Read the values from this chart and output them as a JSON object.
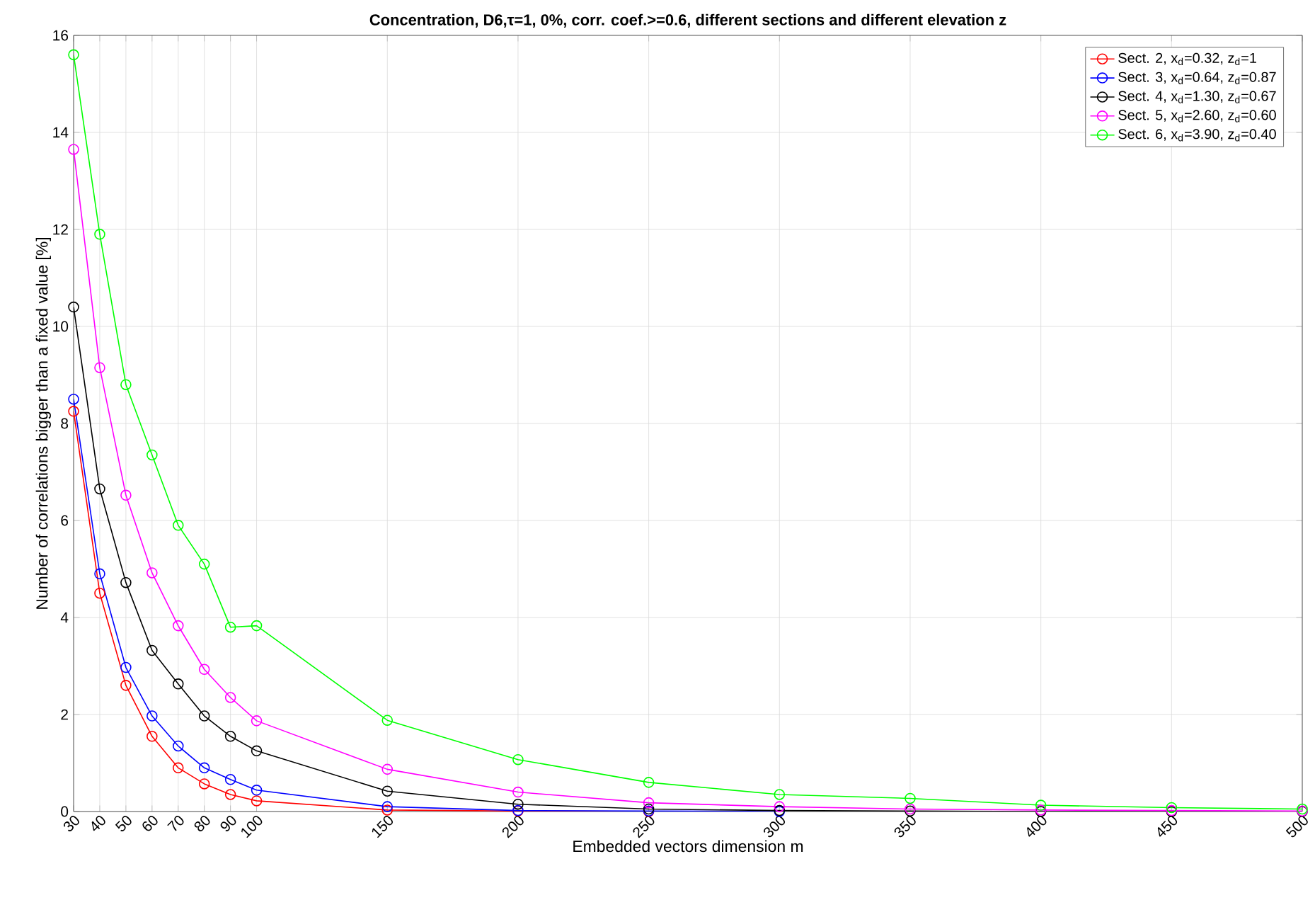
{
  "chart_data": {
    "type": "line",
    "title": "Concentration, D6,τ=1, 0%, corr. coef.>=0.6, different sections and different elevation z",
    "xlabel": "Embedded vectors dimension m",
    "ylabel": "Number of correlations bigger than a fixed value [%]",
    "x": [
      30,
      40,
      50,
      60,
      70,
      80,
      90,
      100,
      150,
      200,
      250,
      300,
      350,
      400,
      450,
      500
    ],
    "series": [
      {
        "name": "Sect. 2, x$_{d}$=0.32, z$_{d}$=1",
        "color": "#ff0000",
        "values": [
          8.25,
          4.5,
          2.6,
          1.55,
          0.9,
          0.57,
          0.35,
          0.22,
          0.03,
          0.01,
          0,
          null,
          null,
          null,
          null,
          null
        ]
      },
      {
        "name": "Sect. 3, x$_{d}$=0.64, z$_{d}$=0.87",
        "color": "#0000ff",
        "values": [
          8.5,
          4.9,
          2.97,
          1.97,
          1.35,
          0.9,
          0.66,
          0.44,
          0.1,
          0.02,
          0.01,
          0,
          null,
          null,
          null,
          null
        ]
      },
      {
        "name": "Sect. 4, x$_{d}$=1.30, z$_{d}$=0.67",
        "color": "#000000",
        "values": [
          10.4,
          6.65,
          4.72,
          3.32,
          2.63,
          1.97,
          1.55,
          1.25,
          0.42,
          0.15,
          0.05,
          0.02,
          0.01,
          0,
          0,
          0
        ]
      },
      {
        "name": "Sect. 5, x$_{d}$=2.60, z$_{d}$=0.60",
        "color": "#ff00ff",
        "values": [
          13.65,
          9.15,
          6.52,
          4.92,
          3.83,
          2.93,
          2.35,
          1.87,
          0.87,
          0.4,
          0.18,
          0.1,
          0.05,
          0.03,
          0.02,
          0.01
        ]
      },
      {
        "name": "Sect. 6, x$_{d}$=3.90, z$_{d}$=0.40",
        "color": "#00ff00",
        "values": [
          15.6,
          11.9,
          8.8,
          7.35,
          5.9,
          5.1,
          3.8,
          3.83,
          1.88,
          1.07,
          0.6,
          0.35,
          0.27,
          0.13,
          0.08,
          0.05
        ]
      }
    ],
    "xlim": [
      30,
      500
    ],
    "xticks": [
      30,
      40,
      50,
      60,
      70,
      80,
      90,
      100,
      150,
      200,
      250,
      300,
      350,
      400,
      450,
      500
    ],
    "ylim": [
      0,
      16
    ],
    "yticks": [
      0,
      2,
      4,
      6,
      8,
      10,
      12,
      14,
      16
    ],
    "grid": true,
    "legend": "top right",
    "marker": "circle",
    "line_style": "solid"
  }
}
